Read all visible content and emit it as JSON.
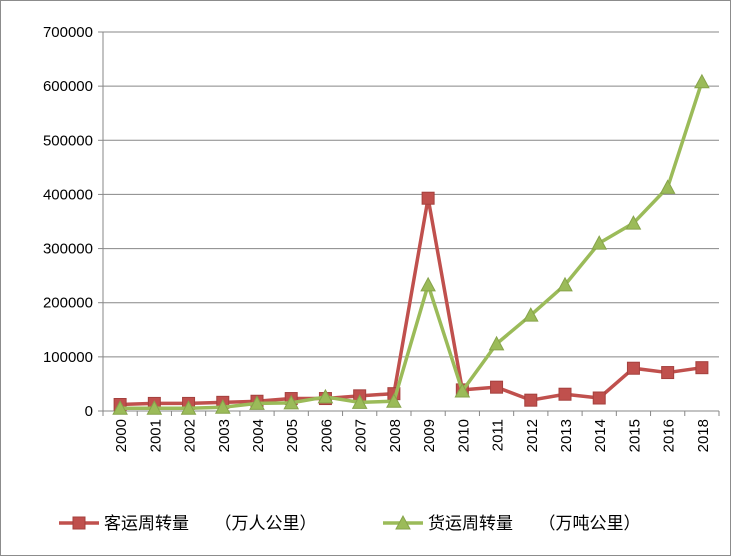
{
  "chart_data": {
    "type": "line",
    "title": "",
    "xlabel": "",
    "ylabel": "",
    "ylim": [
      0,
      700000
    ],
    "yticks": [
      "0",
      "100000",
      "200000",
      "300000",
      "400000",
      "500000",
      "600000",
      "700000"
    ],
    "categories": [
      "2000",
      "2001",
      "2002",
      "2003",
      "2004",
      "2005",
      "2006",
      "2007",
      "2008",
      "2009",
      "2010",
      "2011",
      "2012",
      "2013",
      "2014",
      "2015",
      "2016",
      "2018"
    ],
    "grid": true,
    "legend_position": "bottom",
    "series": [
      {
        "name": "客运周转量　　（万人公里）",
        "color": "#c0504d",
        "marker": "square",
        "values": [
          12000,
          14000,
          14000,
          16000,
          18000,
          23000,
          23000,
          28000,
          32000,
          393000,
          39000,
          44000,
          20000,
          31000,
          24000,
          79000,
          71000,
          80000
        ]
      },
      {
        "name": "货运周转量　　（万吨公里）",
        "color": "#9bbb59",
        "marker": "triangle",
        "values": [
          5000,
          5000,
          5000,
          7000,
          14000,
          15000,
          26000,
          16000,
          18000,
          233000,
          37000,
          124000,
          177000,
          233000,
          310000,
          347000,
          413000,
          608000
        ]
      }
    ]
  }
}
